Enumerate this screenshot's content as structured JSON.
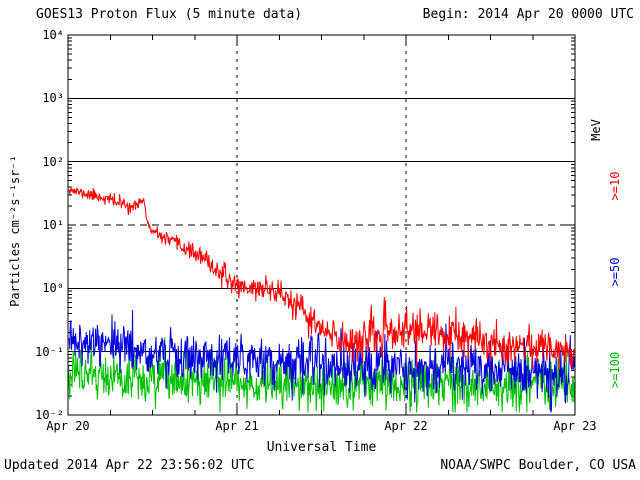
{
  "header": {
    "begin": "Begin: 2014 Apr 20 0000 UTC"
  },
  "footer": {
    "updated": "Updated 2014 Apr 22 23:56:02 UTC",
    "credit": "NOAA/SWPC Boulder, CO USA"
  },
  "chart_data": {
    "type": "line",
    "title": "GOES13 Proton Flux (5 minute data)",
    "xlabel": "Universal Time",
    "ylabel": "Particles cm⁻²s⁻¹sr⁻¹",
    "right_axis_title": "MeV",
    "y_scale": "log",
    "ylim": [
      0.01,
      10000
    ],
    "x_range_hours": [
      0,
      72
    ],
    "sampling_minutes": 5,
    "noise_seed": 11,
    "x_ticks": [
      {
        "label": "Apr 20",
        "hour": 0
      },
      {
        "label": "Apr 21",
        "hour": 24
      },
      {
        "label": "Apr 22",
        "hour": 48
      },
      {
        "label": "Apr 23",
        "hour": 72
      }
    ],
    "y_ticks": [
      {
        "label": "10⁴",
        "value": 10000
      },
      {
        "label": "10³",
        "value": 1000
      },
      {
        "label": "10²",
        "value": 100
      },
      {
        "label": "10¹",
        "value": 10
      },
      {
        "label": "10⁰",
        "value": 1
      },
      {
        "label": "10⁻¹",
        "value": 0.1
      },
      {
        "label": "10⁻²",
        "value": 0.01
      }
    ],
    "grid": {
      "h_solid": [
        1000,
        100,
        1,
        0.1
      ],
      "h_dashed": [
        10
      ],
      "v_dashed_hours": [
        24,
        48
      ]
    },
    "series": [
      {
        "name": ">=10 MeV",
        "legend": ">=10",
        "color": "#ff0000",
        "points": [
          [
            0,
            38,
            0.04
          ],
          [
            1,
            34,
            0.04
          ],
          [
            2,
            32,
            0.04
          ],
          [
            3,
            30,
            0.05
          ],
          [
            4,
            29,
            0.05
          ],
          [
            5,
            27,
            0.05
          ],
          [
            6,
            25,
            0.05
          ],
          [
            7,
            23,
            0.06
          ],
          [
            8,
            21,
            0.06
          ],
          [
            9,
            20,
            0.05
          ],
          [
            9.8,
            19,
            0.04
          ],
          [
            10.3,
            26,
            0.04
          ],
          [
            10.8,
            24,
            0.03
          ],
          [
            11.2,
            12,
            0.03
          ],
          [
            11.6,
            8.5,
            0.04
          ],
          [
            12,
            7.8,
            0.04
          ],
          [
            13,
            6.8,
            0.05
          ],
          [
            14,
            6,
            0.05
          ],
          [
            15,
            5.2,
            0.06
          ],
          [
            16,
            4.6,
            0.06
          ],
          [
            17,
            4.1,
            0.06
          ],
          [
            18,
            3.6,
            0.07
          ],
          [
            19,
            3,
            0.07
          ],
          [
            20,
            2.5,
            0.08
          ],
          [
            21,
            2,
            0.08
          ],
          [
            22,
            1.6,
            0.08
          ],
          [
            23,
            1.3,
            0.08
          ],
          [
            24,
            1.15,
            0.08
          ],
          [
            25,
            1.05,
            0.09
          ],
          [
            26,
            1,
            0.09
          ],
          [
            28,
            1,
            0.09
          ],
          [
            29,
            0.95,
            0.1
          ],
          [
            30,
            0.85,
            0.1
          ],
          [
            31,
            0.7,
            0.11
          ],
          [
            32,
            0.55,
            0.12
          ],
          [
            33,
            0.45,
            0.12
          ],
          [
            34,
            0.35,
            0.13
          ],
          [
            35,
            0.28,
            0.13
          ],
          [
            36,
            0.22,
            0.14
          ],
          [
            37,
            0.18,
            0.15
          ],
          [
            38,
            0.16,
            0.16
          ],
          [
            39,
            0.15,
            0.16
          ],
          [
            40,
            0.15,
            0.17
          ],
          [
            42,
            0.16,
            0.17
          ],
          [
            44,
            0.18,
            0.17
          ],
          [
            46,
            0.2,
            0.17
          ],
          [
            48,
            0.22,
            0.17
          ],
          [
            50,
            0.22,
            0.17
          ],
          [
            52,
            0.2,
            0.16
          ],
          [
            54,
            0.18,
            0.16
          ],
          [
            56,
            0.16,
            0.16
          ],
          [
            58,
            0.15,
            0.15
          ],
          [
            60,
            0.14,
            0.15
          ],
          [
            62,
            0.13,
            0.15
          ],
          [
            64,
            0.13,
            0.14
          ],
          [
            66,
            0.12,
            0.14
          ],
          [
            68,
            0.12,
            0.13
          ],
          [
            70,
            0.11,
            0.13
          ],
          [
            71.92,
            0.1,
            0.12
          ]
        ]
      },
      {
        "name": ">=50 MeV",
        "legend": ">=50",
        "color": "#0000dd",
        "points": [
          [
            0,
            0.17,
            0.16
          ],
          [
            2,
            0.15,
            0.18
          ],
          [
            4,
            0.14,
            0.19
          ],
          [
            6,
            0.13,
            0.2
          ],
          [
            8,
            0.12,
            0.2
          ],
          [
            10,
            0.11,
            0.2
          ],
          [
            12,
            0.1,
            0.2
          ],
          [
            14,
            0.095,
            0.2
          ],
          [
            16,
            0.09,
            0.2
          ],
          [
            18,
            0.085,
            0.21
          ],
          [
            20,
            0.08,
            0.21
          ],
          [
            24,
            0.075,
            0.21
          ],
          [
            28,
            0.07,
            0.21
          ],
          [
            32,
            0.065,
            0.21
          ],
          [
            36,
            0.065,
            0.21
          ],
          [
            40,
            0.06,
            0.21
          ],
          [
            44,
            0.06,
            0.21
          ],
          [
            48,
            0.06,
            0.21
          ],
          [
            52,
            0.058,
            0.21
          ],
          [
            56,
            0.055,
            0.21
          ],
          [
            60,
            0.055,
            0.21
          ],
          [
            64,
            0.052,
            0.21
          ],
          [
            68,
            0.05,
            0.21
          ],
          [
            71.92,
            0.05,
            0.2
          ]
        ]
      },
      {
        "name": ">=100 MeV",
        "legend": ">=100",
        "color": "#00c000",
        "points": [
          [
            0,
            0.042,
            0.2
          ],
          [
            6,
            0.04,
            0.2
          ],
          [
            12,
            0.038,
            0.2
          ],
          [
            18,
            0.036,
            0.2
          ],
          [
            24,
            0.034,
            0.2
          ],
          [
            32,
            0.032,
            0.2
          ],
          [
            40,
            0.03,
            0.2
          ],
          [
            48,
            0.03,
            0.2
          ],
          [
            56,
            0.029,
            0.2
          ],
          [
            64,
            0.028,
            0.2
          ],
          [
            71.92,
            0.028,
            0.2
          ]
        ]
      }
    ]
  }
}
